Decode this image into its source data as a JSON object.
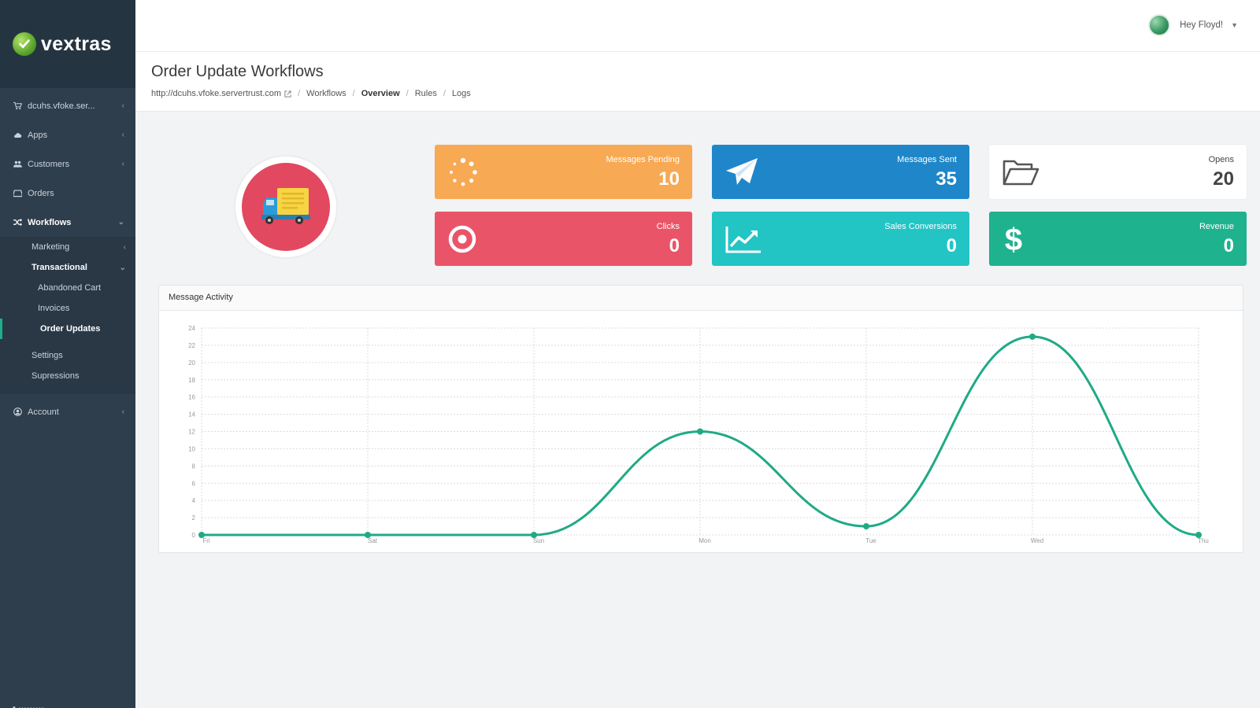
{
  "brand": {
    "name": "vextras"
  },
  "sidebar": {
    "store": "dcuhs.vfoke.ser...",
    "apps": "Apps",
    "customers": "Customers",
    "orders": "Orders",
    "workflows": "Workflows",
    "marketing": "Marketing",
    "transactional": "Transactional",
    "abandoned_cart": "Abandoned Cart",
    "invoices": "Invoices",
    "order_updates": "Order Updates",
    "settings": "Settings",
    "supressions": "Supressions",
    "account": "Account"
  },
  "user": {
    "greeting": "Hey Floyd!"
  },
  "page": {
    "title": "Order Update Workflows",
    "breadcrumb": {
      "url": "http://dcuhs.vfoke.servertrust.com",
      "workflows": "Workflows",
      "overview": "Overview",
      "rules": "Rules",
      "logs": "Logs"
    }
  },
  "cards": {
    "pending": {
      "label": "Messages Pending",
      "value": "10",
      "color": "#f7a954"
    },
    "sent": {
      "label": "Messages Sent",
      "value": "35",
      "color": "#1f87c9"
    },
    "opens": {
      "label": "Opens",
      "value": "20",
      "color": "#ffffff"
    },
    "clicks": {
      "label": "Clicks",
      "value": "0",
      "color": "#ea5468"
    },
    "conversions": {
      "label": "Sales Conversions",
      "value": "0",
      "color": "#23c4c4"
    },
    "revenue": {
      "label": "Revenue",
      "value": "0",
      "color": "#1fb28e"
    }
  },
  "chart_panel": {
    "title": "Message Activity"
  },
  "chart_data": {
    "type": "line",
    "categories": [
      "Fri",
      "Sat",
      "Sun",
      "Mon",
      "Tue",
      "Wed",
      "Thu"
    ],
    "series": [
      {
        "values": [
          0,
          0,
          0,
          12,
          1,
          23,
          0
        ]
      }
    ],
    "yticks": [
      0,
      2,
      4,
      6,
      8,
      10,
      12,
      14,
      16,
      18,
      20,
      22,
      24
    ],
    "ylim": [
      0,
      24
    ],
    "grid": true,
    "line_color": "#1faa86"
  }
}
